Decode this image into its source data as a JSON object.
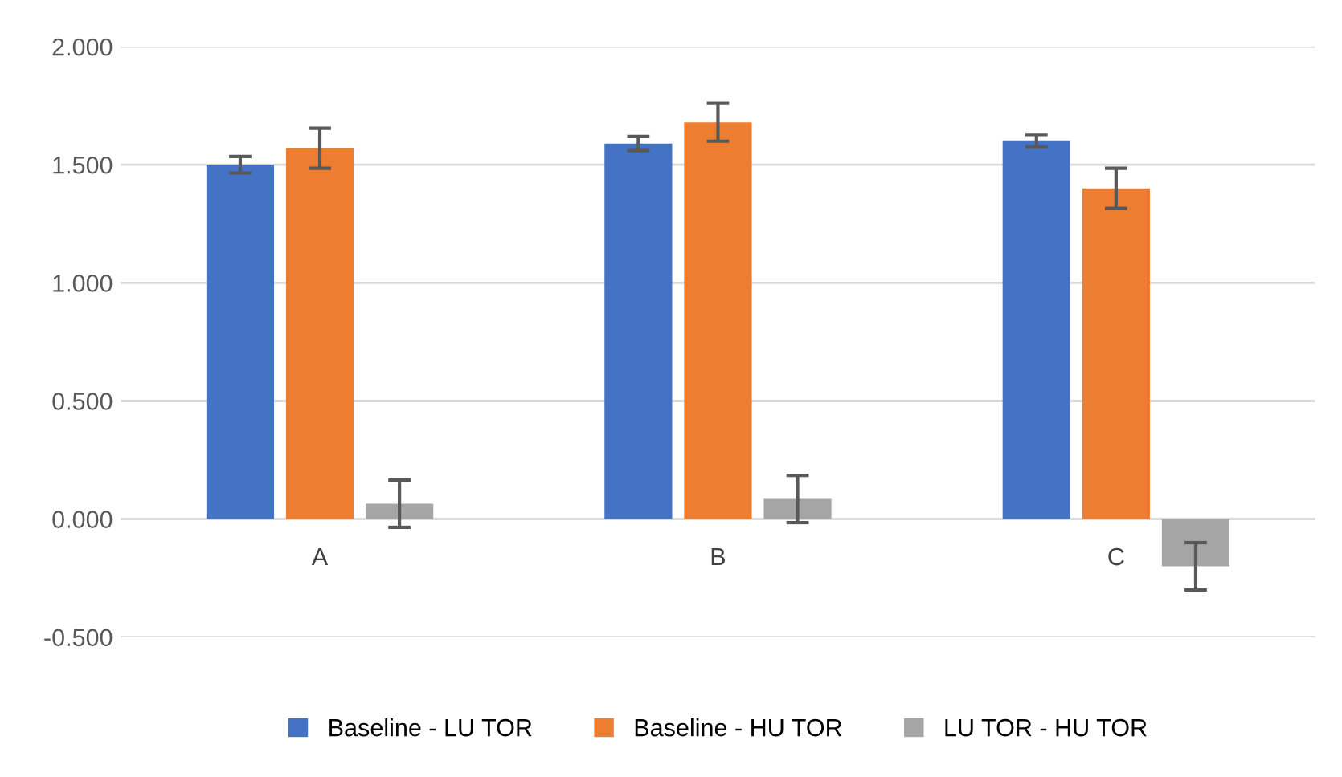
{
  "chart_data": {
    "type": "bar",
    "categories": [
      "A",
      "B",
      "C"
    ],
    "series": [
      {
        "name": "Baseline - LU TOR",
        "color": "#4472c4",
        "values": [
          1.5,
          1.59,
          1.6
        ],
        "errors": [
          0.035,
          0.03,
          0.025
        ]
      },
      {
        "name": "Baseline - HU TOR",
        "color": "#ed7d31",
        "values": [
          1.57,
          1.68,
          1.4
        ],
        "errors": [
          0.085,
          0.08,
          0.085
        ]
      },
      {
        "name": "LU TOR - HU TOR",
        "color": "#a5a5a5",
        "values": [
          0.065,
          0.085,
          -0.2
        ],
        "errors": [
          0.1,
          0.1,
          0.1
        ]
      }
    ],
    "ylim": [
      -0.5,
      2.0
    ],
    "yticks": [
      {
        "value": -0.5,
        "label": "-0.500"
      },
      {
        "value": 0,
        "label": "0.000"
      },
      {
        "value": 0.5,
        "label": "0.500"
      },
      {
        "value": 1.0,
        "label": "1.000"
      },
      {
        "value": 1.5,
        "label": "1.500"
      },
      {
        "value": 2.0,
        "label": "2.000"
      }
    ],
    "grid": "y",
    "legend": "bottom"
  }
}
